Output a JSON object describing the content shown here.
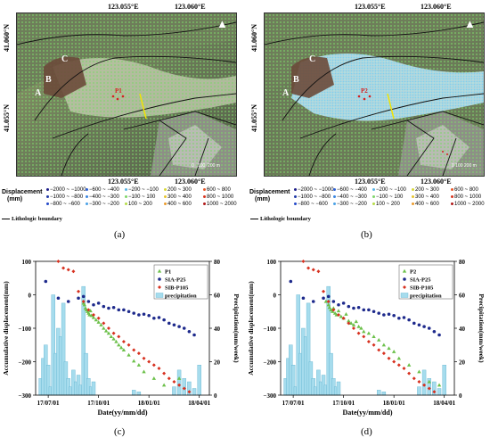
{
  "panels": {
    "a": "(a)",
    "b": "(b)",
    "c": "(c)",
    "d": "(d)"
  },
  "maps": {
    "lon_left": "123.055°E",
    "lon_right": "123.060°E",
    "lat_top": "41.060°N",
    "lat_mid": "41.055°N",
    "place_labels": [
      "A",
      "B",
      "C"
    ],
    "point_labels_a": [
      "P1"
    ],
    "point_labels_b": [
      "P2"
    ],
    "scale": {
      "zero": "0",
      "hundred": "100",
      "two_hundred": "200 m"
    }
  },
  "legend": {
    "title_line1": "Displacement",
    "title_line2": "(mm)",
    "items": [
      {
        "label": "−2000 ~ −1000",
        "color": "#1d1d8a"
      },
      {
        "label": "−600 ~ −400",
        "color": "#2b5fd6"
      },
      {
        "label": "−200 ~ −100",
        "color": "#5bb6e8"
      },
      {
        "label": "200 ~ 300",
        "color": "#d9d93a"
      },
      {
        "label": "600 ~ 800",
        "color": "#e8582a"
      },
      {
        "label": "−1000 ~ −800",
        "color": "#203aa8"
      },
      {
        "label": "−400 ~ −300",
        "color": "#3a85e0"
      },
      {
        "label": "−100 ~ 100",
        "color": "#7ed66a"
      },
      {
        "label": "300 ~ 400",
        "color": "#e8c52e"
      },
      {
        "label": "800 ~ 1000",
        "color": "#d8341e"
      },
      {
        "label": "−800 ~ −600",
        "color": "#2449c8"
      },
      {
        "label": "−300 ~ −200",
        "color": "#4aa1e6"
      },
      {
        "label": "100 ~ 200",
        "color": "#b6dc48"
      },
      {
        "label": "400 ~ 600",
        "color": "#eb9b2c"
      },
      {
        "label": "1000 ~ 2000",
        "color": "#b01a1a"
      }
    ],
    "boundary": "Lithologic boundary"
  },
  "colors": {
    "p": "#6cc04a",
    "sia": "#1e2a8c",
    "sib": "#d7301f",
    "precip": "#a6dced",
    "precip_edge": "#5fb2cf"
  },
  "chart_data": [
    {
      "type": "scatter",
      "xlabel": "Date(yy/mm/dd)",
      "ylabel": "Accumulative displacement(mm)",
      "ylabel2": "Precipitation(mm/week)",
      "xticks": [
        "17/07/01",
        "17/10/01",
        "18/01/01",
        "18/04/01"
      ],
      "yticks": [
        "100",
        "0",
        "−100",
        "−200",
        "−300"
      ],
      "y2ticks": [
        "80",
        "60",
        "40",
        "20",
        "0"
      ],
      "ylim": [
        -300,
        100
      ],
      "y2lim": [
        0,
        80
      ],
      "series": [
        {
          "name": "P1",
          "x": [
            0.5,
            0.52,
            0.54,
            0.56,
            0.58,
            0.6,
            0.62,
            0.64,
            0.66,
            0.7,
            0.75,
            0.8,
            0.85,
            0.9,
            0.95,
            1.0,
            1.05,
            1.1,
            1.15,
            1.2,
            1.25,
            1.3,
            1.4,
            1.5,
            1.6,
            1.7,
            1.9,
            2.1,
            2.4
          ],
          "y": [
            -25,
            -30,
            -40,
            -45,
            -50,
            -55,
            -60,
            -48,
            -62,
            -68,
            -75,
            -82,
            -90,
            -100,
            -108,
            -115,
            -125,
            -132,
            -140,
            -150,
            -158,
            -165,
            -180,
            -198,
            -210,
            -230,
            -250,
            -270,
            -250
          ]
        },
        {
          "name": "SIA-P25",
          "x": [
            -0.25,
            0.0,
            0.2,
            0.4,
            0.5,
            0.6,
            0.7,
            0.8,
            0.9,
            1.0,
            1.1,
            1.2,
            1.3,
            1.4,
            1.5,
            1.6,
            1.7,
            1.8,
            1.9,
            2.0,
            2.1,
            2.2,
            2.3,
            2.4,
            2.5,
            2.6,
            2.7
          ],
          "y": [
            40,
            -10,
            -20,
            -10,
            -5,
            -20,
            -30,
            -25,
            -35,
            -40,
            -38,
            -45,
            -45,
            -50,
            -55,
            -60,
            -58,
            -62,
            -70,
            -68,
            -75,
            -85,
            -90,
            -95,
            -100,
            -110,
            -120
          ]
        },
        {
          "name": "SIB-P105",
          "x": [
            0.0,
            0.1,
            0.2,
            0.3,
            0.4,
            0.5,
            0.6,
            0.7,
            0.8,
            0.9,
            1.0,
            1.1,
            1.2,
            1.3,
            1.4,
            1.5,
            1.6,
            1.7,
            1.8,
            1.9,
            2.0,
            2.1,
            2.2,
            2.3,
            2.4,
            2.5,
            2.6
          ],
          "y": [
            100,
            80,
            75,
            70,
            10,
            -20,
            -45,
            -60,
            -70,
            -85,
            -100,
            -115,
            -125,
            -140,
            -150,
            -165,
            -175,
            -190,
            -200,
            -210,
            -220,
            -235,
            -250,
            -260,
            -270,
            -280,
            -290
          ]
        }
      ],
      "precipitation": {
        "name": "precipitation",
        "x": [
          -0.35,
          -0.3,
          -0.25,
          -0.2,
          -0.15,
          -0.1,
          -0.05,
          0.0,
          0.05,
          0.1,
          0.15,
          0.2,
          0.25,
          0.3,
          0.35,
          0.4,
          0.45,
          0.5,
          0.55,
          0.6,
          0.65,
          0.7,
          1.5,
          1.6,
          2.3,
          2.4,
          2.5,
          2.6,
          2.7,
          2.8
        ],
        "values": [
          10,
          22,
          30,
          18,
          5,
          60,
          25,
          40,
          35,
          55,
          20,
          10,
          5,
          15,
          8,
          12,
          6,
          65,
          25,
          10,
          5,
          8,
          3,
          2,
          5,
          15,
          10,
          8,
          4,
          18
        ]
      }
    },
    {
      "type": "scatter",
      "xlabel": "Date(yy/mm/dd)",
      "ylabel": "Accumulative displacement(mm)",
      "ylabel2": "Precipitation(mm/week)",
      "xticks": [
        "17/07/01",
        "17/10/01",
        "18/01/01",
        "18/04/01"
      ],
      "yticks": [
        "100",
        "0",
        "−100",
        "−200",
        "−300"
      ],
      "y2ticks": [
        "80",
        "60",
        "40",
        "20",
        "0"
      ],
      "ylim": [
        -300,
        100
      ],
      "y2lim": [
        0,
        80
      ],
      "series": [
        {
          "name": "P2",
          "x": [
            0.45,
            0.5,
            0.52,
            0.55,
            0.58,
            0.6,
            0.63,
            0.66,
            0.7,
            0.75,
            0.8,
            0.85,
            0.9,
            0.95,
            1.0,
            1.05,
            1.1,
            1.15,
            1.2,
            1.3,
            1.4,
            1.5,
            1.6,
            1.7,
            1.8,
            1.9,
            2.1,
            2.3,
            2.5,
            2.7
          ],
          "y": [
            -20,
            -30,
            -38,
            -45,
            -50,
            -40,
            -55,
            -60,
            -48,
            -65,
            -70,
            -58,
            -78,
            -85,
            -90,
            -80,
            -95,
            -100,
            -110,
            -115,
            -125,
            -135,
            -150,
            -160,
            -170,
            -190,
            -210,
            -230,
            -260,
            -270
          ]
        },
        {
          "name": "SIA-P25",
          "x": [
            -0.25,
            0.0,
            0.2,
            0.4,
            0.5,
            0.6,
            0.7,
            0.8,
            0.9,
            1.0,
            1.1,
            1.2,
            1.3,
            1.4,
            1.5,
            1.6,
            1.7,
            1.8,
            1.9,
            2.0,
            2.1,
            2.2,
            2.3,
            2.4,
            2.5,
            2.6,
            2.7
          ],
          "y": [
            40,
            -10,
            -20,
            -10,
            -5,
            -20,
            -30,
            -25,
            -35,
            -40,
            -38,
            -45,
            -45,
            -50,
            -55,
            -60,
            -58,
            -62,
            -70,
            -68,
            -75,
            -85,
            -90,
            -95,
            -100,
            -110,
            -120
          ]
        },
        {
          "name": "SIB-P105",
          "x": [
            0.0,
            0.1,
            0.2,
            0.3,
            0.4,
            0.5,
            0.6,
            0.7,
            0.8,
            0.9,
            1.0,
            1.1,
            1.2,
            1.3,
            1.4,
            1.5,
            1.6,
            1.7,
            1.8,
            1.9,
            2.0,
            2.1,
            2.2,
            2.3,
            2.4,
            2.5,
            2.6
          ],
          "y": [
            100,
            80,
            75,
            70,
            10,
            -20,
            -45,
            -60,
            -70,
            -85,
            -100,
            -115,
            -125,
            -140,
            -150,
            -165,
            -175,
            -190,
            -200,
            -210,
            -220,
            -235,
            -250,
            -260,
            -270,
            -280,
            -290
          ]
        }
      ],
      "precipitation": {
        "name": "precipitation",
        "x": [
          -0.35,
          -0.3,
          -0.25,
          -0.2,
          -0.15,
          -0.1,
          -0.05,
          0.0,
          0.05,
          0.1,
          0.15,
          0.2,
          0.25,
          0.3,
          0.35,
          0.4,
          0.45,
          0.5,
          0.55,
          0.6,
          0.65,
          0.7,
          1.5,
          1.6,
          2.3,
          2.4,
          2.5,
          2.6,
          2.7,
          2.8
        ],
        "values": [
          10,
          22,
          30,
          18,
          5,
          60,
          25,
          40,
          35,
          55,
          20,
          10,
          5,
          15,
          8,
          12,
          6,
          65,
          25,
          10,
          5,
          8,
          3,
          2,
          5,
          15,
          10,
          8,
          4,
          18
        ]
      }
    }
  ]
}
